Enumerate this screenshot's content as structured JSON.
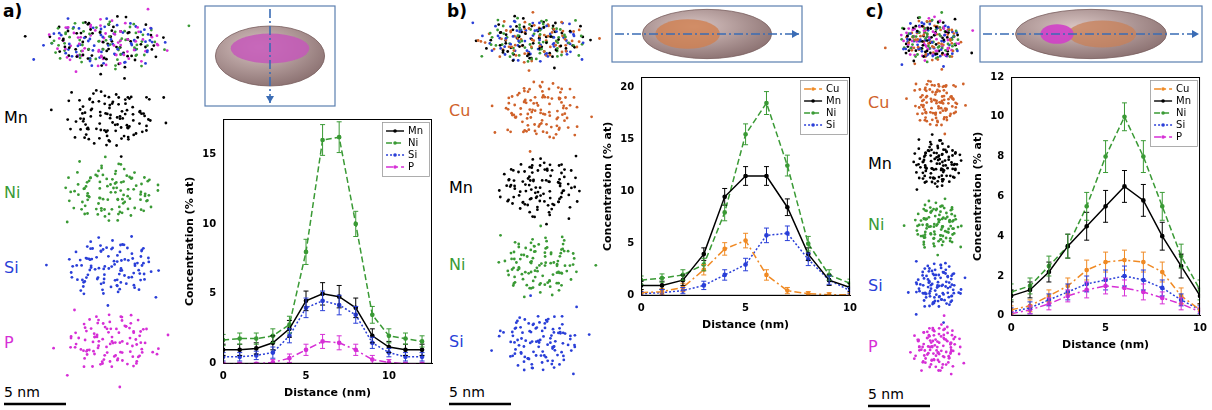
{
  "panels": [
    {
      "letter": "a)",
      "scale_bar": "5 nm",
      "elements": [
        {
          "label": "Mn",
          "color": "#000000"
        },
        {
          "label": "Ni",
          "color": "#3a9a35"
        },
        {
          "label": "Si",
          "color": "#2a3fd8"
        },
        {
          "label": "P",
          "color": "#d62fd6"
        }
      ]
    },
    {
      "letter": "b)",
      "scale_bar": "5 nm",
      "elements": [
        {
          "label": "Cu",
          "color": "#d0622a"
        },
        {
          "label": "Mn",
          "color": "#000000"
        },
        {
          "label": "Ni",
          "color": "#3a9a35"
        },
        {
          "label": "Si",
          "color": "#2a3fd8"
        }
      ]
    },
    {
      "letter": "c)",
      "scale_bar": "5 nm",
      "elements": [
        {
          "label": "Cu",
          "color": "#d0622a"
        },
        {
          "label": "Mn",
          "color": "#000000"
        },
        {
          "label": "Ni",
          "color": "#3a9a35"
        },
        {
          "label": "Si",
          "color": "#2a3fd8"
        },
        {
          "label": "P",
          "color": "#d62fd6"
        }
      ]
    }
  ],
  "chart_data": [
    {
      "type": "line",
      "x_label": "Distance (nm)",
      "y_label": "Concentration (% at)",
      "x": [
        0,
        1,
        2,
        3,
        4,
        5,
        6,
        7,
        8,
        9,
        10,
        11,
        12
      ],
      "xlim": [
        0,
        12.6
      ],
      "xticks": [
        0,
        5,
        10
      ],
      "ylim": [
        0,
        17.5
      ],
      "yticks": [
        0,
        5,
        10,
        15
      ],
      "grid": false,
      "legend": "upper right",
      "series": [
        {
          "name": "Mn",
          "color": "#000000",
          "line_style": "solid",
          "values": [
            1.0,
            1.0,
            1.1,
            1.5,
            2.5,
            4.5,
            5.0,
            4.8,
            4.0,
            2.0,
            1.2,
            1.0,
            1.0
          ],
          "errors": [
            0.4,
            0.4,
            0.4,
            0.5,
            0.6,
            0.7,
            0.8,
            0.8,
            0.7,
            0.5,
            0.4,
            0.4,
            0.4
          ]
        },
        {
          "name": "Ni",
          "color": "#3a9a35",
          "line_style": "dashed",
          "values": [
            1.7,
            1.8,
            1.8,
            2.0,
            2.8,
            8.0,
            16.0,
            16.2,
            10.0,
            3.5,
            2.0,
            1.8,
            1.6
          ],
          "errors": [
            0.4,
            0.4,
            0.4,
            0.5,
            0.6,
            0.9,
            1.1,
            1.1,
            0.9,
            0.6,
            0.5,
            0.4,
            0.4
          ]
        },
        {
          "name": "Si",
          "color": "#2a3fd8",
          "line_style": "dotted",
          "values": [
            0.5,
            0.5,
            0.6,
            0.8,
            2.0,
            4.0,
            4.5,
            4.2,
            3.5,
            1.5,
            0.8,
            0.5,
            0.5
          ],
          "errors": [
            0.3,
            0.3,
            0.3,
            0.4,
            0.5,
            0.7,
            0.7,
            0.7,
            0.6,
            0.4,
            0.3,
            0.3,
            0.3
          ]
        },
        {
          "name": "P",
          "color": "#d62fd6",
          "line_style": "dashdot",
          "values": [
            0.0,
            0.0,
            0.0,
            0.1,
            0.4,
            1.0,
            1.6,
            1.5,
            1.0,
            0.3,
            0.1,
            0.0,
            0.0
          ],
          "errors": [
            0.1,
            0.1,
            0.1,
            0.2,
            0.3,
            0.4,
            0.5,
            0.5,
            0.4,
            0.3,
            0.2,
            0.1,
            0.1
          ]
        }
      ]
    },
    {
      "type": "line",
      "x_label": "Distance (nm)",
      "y_label": "Concentration (% at)",
      "x": [
        0,
        1,
        2,
        3,
        4,
        5,
        6,
        7,
        8,
        9,
        10
      ],
      "xlim": [
        0,
        10
      ],
      "xticks": [
        0,
        5,
        10
      ],
      "ylim": [
        0,
        21
      ],
      "yticks": [
        0,
        5,
        10,
        15,
        20
      ],
      "grid": false,
      "legend": "upper right",
      "series": [
        {
          "name": "Cu",
          "color": "#f08a24",
          "line_style": "dashdot",
          "values": [
            0.3,
            0.4,
            0.8,
            2.5,
            4.5,
            5.3,
            2.0,
            0.5,
            0.2,
            0.1,
            0.1
          ],
          "errors": [
            0.3,
            0.3,
            0.4,
            0.5,
            0.6,
            0.7,
            0.5,
            0.3,
            0.2,
            0.2,
            0.2
          ]
        },
        {
          "name": "Mn",
          "color": "#000000",
          "line_style": "solid",
          "values": [
            1.0,
            1.0,
            1.5,
            4.0,
            9.5,
            11.5,
            11.5,
            8.5,
            4.0,
            1.5,
            0.8
          ],
          "errors": [
            0.4,
            0.4,
            0.5,
            0.6,
            0.8,
            0.9,
            0.9,
            0.8,
            0.6,
            0.5,
            0.4
          ]
        },
        {
          "name": "Ni",
          "color": "#3a9a35",
          "line_style": "dashed",
          "values": [
            1.5,
            1.7,
            2.0,
            3.0,
            8.0,
            15.5,
            18.5,
            12.5,
            5.0,
            2.0,
            1.2
          ],
          "errors": [
            0.4,
            0.4,
            0.5,
            0.6,
            0.8,
            1.0,
            1.1,
            1.0,
            0.7,
            0.5,
            0.4
          ]
        },
        {
          "name": "Si",
          "color": "#2a3fd8",
          "line_style": "dotted",
          "values": [
            0.2,
            0.3,
            0.5,
            1.0,
            2.0,
            3.0,
            5.8,
            6.0,
            3.5,
            1.5,
            0.5
          ],
          "errors": [
            0.2,
            0.3,
            0.3,
            0.4,
            0.5,
            0.6,
            0.7,
            0.7,
            0.6,
            0.4,
            0.3
          ]
        }
      ]
    },
    {
      "type": "line",
      "x_label": "Distance (nm)",
      "y_label": "Concentration (% at)",
      "x": [
        0,
        1,
        2,
        3,
        4,
        5,
        6,
        7,
        8,
        9,
        10
      ],
      "xlim": [
        0,
        10
      ],
      "xticks": [
        0,
        5,
        10
      ],
      "ylim": [
        0,
        12
      ],
      "yticks": [
        0,
        2,
        4,
        6,
        8,
        10,
        12
      ],
      "grid": false,
      "legend": "upper right",
      "series": [
        {
          "name": "Cu",
          "color": "#f08a24",
          "line_style": "dashdot",
          "values": [
            0.3,
            0.5,
            1.0,
            1.5,
            2.3,
            2.7,
            2.8,
            2.7,
            2.2,
            1.0,
            0.3
          ],
          "errors": [
            0.2,
            0.3,
            0.3,
            0.4,
            0.5,
            0.5,
            0.5,
            0.5,
            0.5,
            0.4,
            0.3
          ]
        },
        {
          "name": "Mn",
          "color": "#000000",
          "line_style": "solid",
          "values": [
            1.0,
            1.3,
            2.2,
            3.5,
            4.5,
            5.5,
            6.5,
            5.8,
            4.0,
            2.5,
            1.0
          ],
          "errors": [
            0.3,
            0.4,
            0.5,
            0.6,
            0.7,
            0.8,
            0.8,
            0.8,
            0.7,
            0.6,
            0.4
          ]
        },
        {
          "name": "Ni",
          "color": "#3a9a35",
          "line_style": "dashed",
          "values": [
            1.2,
            1.5,
            2.5,
            3.5,
            5.5,
            8.0,
            10.0,
            8.0,
            5.5,
            3.0,
            1.3
          ],
          "errors": [
            0.4,
            0.4,
            0.5,
            0.6,
            0.7,
            0.8,
            0.7,
            0.8,
            0.7,
            0.6,
            0.5
          ]
        },
        {
          "name": "Si",
          "color": "#2a3fd8",
          "line_style": "dotted",
          "values": [
            0.2,
            0.4,
            0.8,
            1.2,
            1.6,
            1.8,
            2.0,
            1.8,
            1.4,
            0.8,
            0.3
          ],
          "errors": [
            0.2,
            0.3,
            0.3,
            0.4,
            0.4,
            0.5,
            0.5,
            0.5,
            0.4,
            0.3,
            0.2
          ]
        },
        {
          "name": "P",
          "color": "#d62fd6",
          "line_style": "dashdot",
          "values": [
            0.1,
            0.3,
            0.6,
            1.0,
            1.3,
            1.5,
            1.4,
            1.2,
            0.9,
            0.6,
            0.2
          ],
          "errors": [
            0.1,
            0.2,
            0.3,
            0.3,
            0.4,
            0.4,
            0.4,
            0.4,
            0.3,
            0.3,
            0.2
          ]
        }
      ]
    }
  ]
}
